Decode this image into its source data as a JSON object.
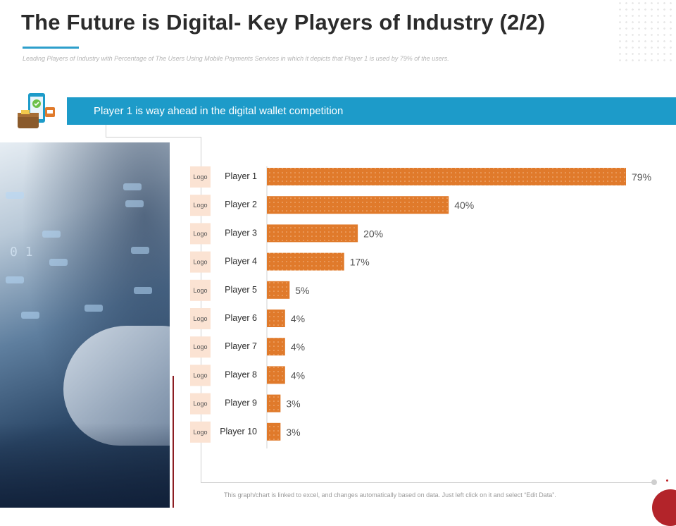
{
  "header": {
    "title": "The Future is Digital- Key Players of Industry (2/2)",
    "subtitle": "Leading Players of Industry with Percentage of The Users Using Mobile Payments Services in which it depicts that Player 1 is used by 79% of the users."
  },
  "banner": {
    "text": "Player 1 is way ahead in the digital wallet competition"
  },
  "footer": {
    "note": "This graph/chart is linked to excel, and changes automatically based on data. Just left click on it and select “Edit Data”."
  },
  "colors": {
    "accent": "#1d9bc9",
    "bar": "#e07a2b",
    "logo_box": "#fbe3d3",
    "dark_red": "#b3242a"
  },
  "icons": [
    "wallet-phone-icon"
  ],
  "chart_data": {
    "type": "bar",
    "orientation": "horizontal",
    "title": "",
    "xlabel": "",
    "ylabel": "",
    "xlim": [
      0,
      79
    ],
    "logo_label": "Logo",
    "categories": [
      "Player 1",
      "Player 2",
      "Player 3",
      "Player 4",
      "Player 5",
      "Player 6",
      "Player 7",
      "Player 8",
      "Player 9",
      "Player 10"
    ],
    "values": [
      79,
      40,
      20,
      17,
      5,
      4,
      4,
      4,
      3,
      3
    ],
    "value_labels": [
      "79%",
      "40%",
      "20%",
      "17%",
      "5%",
      "4%",
      "4%",
      "4%",
      "3%",
      "3%"
    ]
  }
}
